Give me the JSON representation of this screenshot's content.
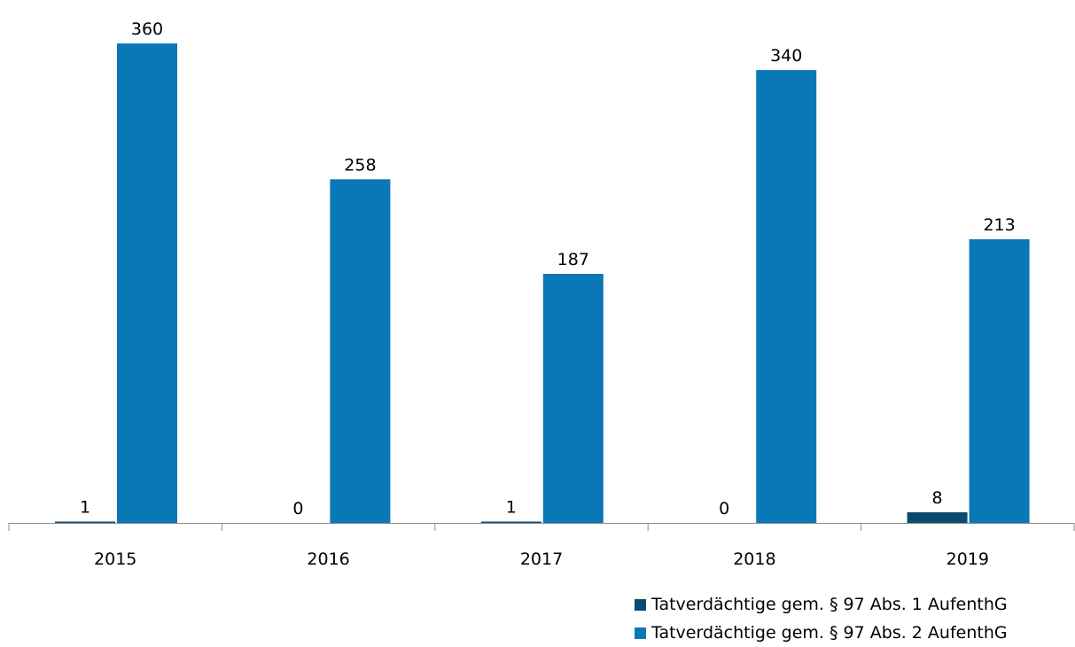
{
  "chart_data": {
    "type": "bar",
    "categories": [
      "2015",
      "2016",
      "2017",
      "2018",
      "2019"
    ],
    "series": [
      {
        "name": "Tatverdächtige gem. § 97 Abs. 1 AufenthG",
        "color": "#0b4a6f",
        "values": [
          1,
          0,
          1,
          0,
          8
        ]
      },
      {
        "name": "Tatverdächtige gem. § 97 Abs. 2 AufenthG",
        "color": "#0a77b7",
        "values": [
          360,
          258,
          187,
          340,
          213
        ]
      }
    ],
    "ylim": [
      0,
      360
    ],
    "grid": false,
    "data_labels": true,
    "legend_position": "bottom-right"
  }
}
